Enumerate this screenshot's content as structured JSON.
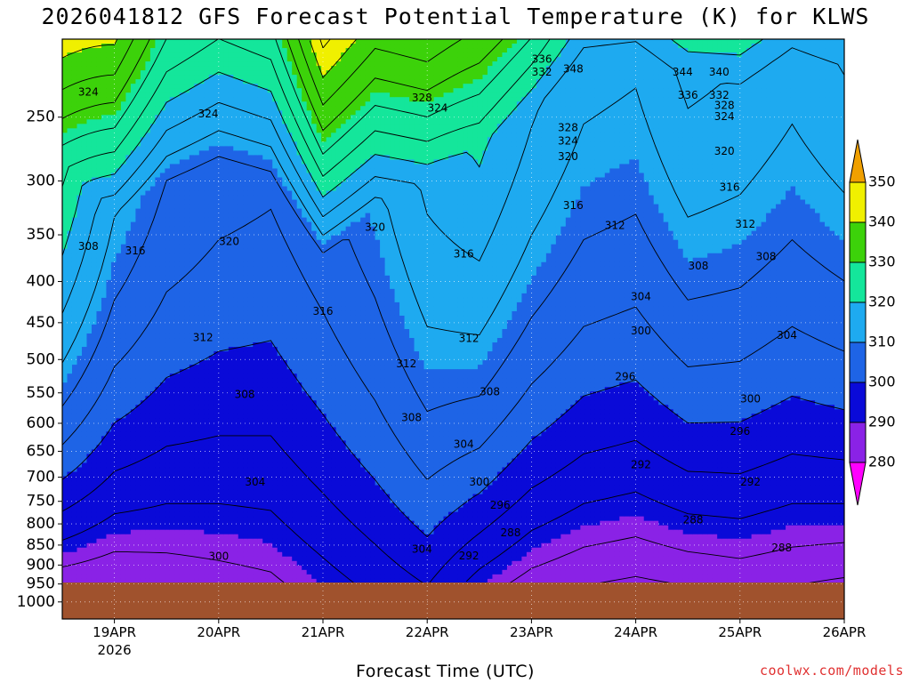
{
  "chart_data": {
    "type": "heatmap",
    "subtype": "filled-contour time-height cross-section",
    "title": "2026041812 GFS Forecast Potential Temperature (K) for KLWS",
    "xlabel": "Forecast Time (UTC)",
    "ylabel": "",
    "credit": "coolwx.com/models",
    "y_units": "hPa",
    "y_scale": "log",
    "ylim": [
      1050,
      200
    ],
    "y_ticks": [
      250,
      300,
      350,
      400,
      450,
      500,
      550,
      600,
      650,
      700,
      750,
      800,
      850,
      900,
      950,
      1000
    ],
    "y_tick_labels": [
      "250",
      "300",
      "350",
      "400",
      "450",
      "500",
      "550",
      "600",
      "650",
      "700",
      "750",
      "800",
      "850",
      "900",
      "950",
      "1000"
    ],
    "x_ticks_days": [
      0.5,
      1.5,
      2.5,
      3.5,
      4.5,
      5.5,
      6.5,
      7.5
    ],
    "x_tick_labels": [
      "19APR",
      "20APR",
      "21APR",
      "22APR",
      "23APR",
      "24APR",
      "25APR",
      "26APR"
    ],
    "x_year_label": "2026",
    "xlim_days": [
      0,
      7.5
    ],
    "surface_pressure_hPa": 955,
    "colorbar": {
      "levels": [
        280,
        290,
        300,
        310,
        320,
        330,
        340,
        350
      ],
      "labels": [
        "280",
        "290",
        "300",
        "310",
        "320",
        "330",
        "340",
        "350"
      ],
      "colors": [
        "#ff00ff",
        "#8a22e6",
        "#0a0ad8",
        "#1e64e6",
        "#1eaaf0",
        "#14e69b",
        "#3cd20a",
        "#f0f000",
        "#f0a000"
      ]
    },
    "isentrope_profiles": {
      "time_days": [
        0,
        0.5,
        1,
        1.5,
        2,
        2.5,
        3,
        3.5,
        4,
        4.5,
        5,
        5.5,
        6,
        6.5,
        7,
        7.5
      ],
      "surface_theta_K": [
        285,
        284,
        285,
        286,
        287,
        290,
        293,
        296,
        290,
        286,
        284,
        283,
        284,
        285,
        284,
        283
      ],
      "lapse_K_per_100hPa": [
        6.0,
        4.5,
        3.5,
        3.0,
        2.7,
        2.7,
        2.8,
        3.2,
        4.5,
        4.3,
        4.0,
        4.0,
        4.5,
        4.2,
        4.0,
        4.5
      ],
      "tropopause_hPa": [
        285,
        330,
        300,
        290,
        310,
        380,
        320,
        300,
        270,
        245,
        215,
        215,
        220,
        230,
        215,
        215
      ],
      "upper_lapse_K_per_100hPa": [
        20,
        22,
        20,
        20,
        20,
        22,
        22,
        22,
        20,
        25,
        24,
        25,
        23,
        22,
        24,
        25
      ]
    },
    "contour_labels": [
      {
        "t": 0.25,
        "p": 233,
        "text": "324"
      },
      {
        "t": 0.7,
        "p": 367,
        "text": "316"
      },
      {
        "t": 0.25,
        "p": 362,
        "text": "308"
      },
      {
        "t": 1.35,
        "p": 470,
        "text": "312"
      },
      {
        "t": 1.6,
        "p": 357,
        "text": "320"
      },
      {
        "t": 1.4,
        "p": 248,
        "text": "324"
      },
      {
        "t": 1.75,
        "p": 553,
        "text": "308"
      },
      {
        "t": 1.85,
        "p": 711,
        "text": "304"
      },
      {
        "t": 1.5,
        "p": 879,
        "text": "300"
      },
      {
        "t": 2.5,
        "p": 436,
        "text": "316"
      },
      {
        "t": 3.0,
        "p": 343,
        "text": "320"
      },
      {
        "t": 3.45,
        "p": 237,
        "text": "328"
      },
      {
        "t": 3.6,
        "p": 244,
        "text": "324"
      },
      {
        "t": 3.3,
        "p": 507,
        "text": "312"
      },
      {
        "t": 3.35,
        "p": 591,
        "text": "308"
      },
      {
        "t": 3.85,
        "p": 370,
        "text": "316"
      },
      {
        "t": 3.9,
        "p": 471,
        "text": "312"
      },
      {
        "t": 4.1,
        "p": 549,
        "text": "308"
      },
      {
        "t": 3.85,
        "p": 638,
        "text": "304"
      },
      {
        "t": 3.45,
        "p": 861,
        "text": "304"
      },
      {
        "t": 3.9,
        "p": 878,
        "text": "292"
      },
      {
        "t": 4.0,
        "p": 711,
        "text": "300"
      },
      {
        "t": 4.2,
        "p": 759,
        "text": "296"
      },
      {
        "t": 4.3,
        "p": 822,
        "text": "288"
      },
      {
        "t": 4.6,
        "p": 212,
        "text": "336"
      },
      {
        "t": 4.6,
        "p": 220,
        "text": "332"
      },
      {
        "t": 4.9,
        "p": 218,
        "text": "348"
      },
      {
        "t": 4.85,
        "p": 258,
        "text": "328"
      },
      {
        "t": 4.85,
        "p": 268,
        "text": "324"
      },
      {
        "t": 4.85,
        "p": 280,
        "text": "320"
      },
      {
        "t": 4.9,
        "p": 322,
        "text": "316"
      },
      {
        "t": 5.3,
        "p": 341,
        "text": "312"
      },
      {
        "t": 5.55,
        "p": 418,
        "text": "304"
      },
      {
        "t": 5.55,
        "p": 461,
        "text": "300"
      },
      {
        "t": 5.4,
        "p": 526,
        "text": "296"
      },
      {
        "t": 5.55,
        "p": 676,
        "text": "292"
      },
      {
        "t": 5.95,
        "p": 220,
        "text": "344"
      },
      {
        "t": 6.3,
        "p": 220,
        "text": "340"
      },
      {
        "t": 6.0,
        "p": 235,
        "text": "336"
      },
      {
        "t": 6.3,
        "p": 235,
        "text": "332"
      },
      {
        "t": 6.35,
        "p": 242,
        "text": "328"
      },
      {
        "t": 6.35,
        "p": 250,
        "text": "324"
      },
      {
        "t": 6.35,
        "p": 276,
        "text": "320"
      },
      {
        "t": 6.4,
        "p": 306,
        "text": "316"
      },
      {
        "t": 6.55,
        "p": 340,
        "text": "312"
      },
      {
        "t": 6.1,
        "p": 383,
        "text": "308"
      },
      {
        "t": 6.75,
        "p": 373,
        "text": "308"
      },
      {
        "t": 6.95,
        "p": 467,
        "text": "304"
      },
      {
        "t": 6.6,
        "p": 560,
        "text": "300"
      },
      {
        "t": 6.5,
        "p": 615,
        "text": "296"
      },
      {
        "t": 6.6,
        "p": 711,
        "text": "292"
      },
      {
        "t": 6.05,
        "p": 792,
        "text": "288"
      },
      {
        "t": 6.9,
        "p": 858,
        "text": "288"
      }
    ]
  }
}
